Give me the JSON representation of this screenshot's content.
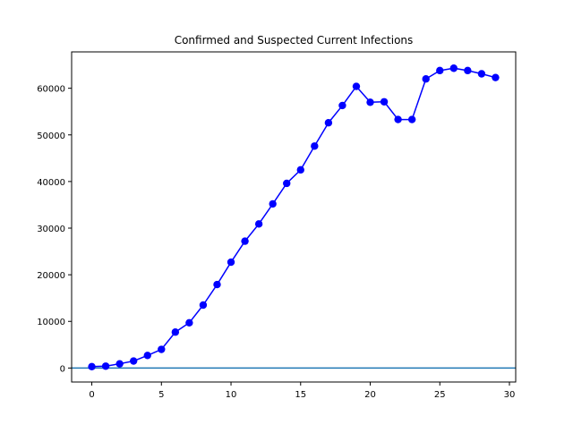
{
  "chart_data": {
    "type": "line",
    "title": "Confirmed and Suspected Current Infections",
    "xlabel": "",
    "ylabel": "",
    "xlim": [
      -1.45,
      30.45
    ],
    "ylim": [
      -3000,
      67800
    ],
    "x_ticks": [
      0,
      5,
      10,
      15,
      20,
      25,
      30
    ],
    "y_ticks": [
      0,
      10000,
      20000,
      30000,
      40000,
      50000,
      60000
    ],
    "grid": false,
    "legend": "none",
    "series": [
      {
        "color": "#0000ff",
        "marker": "circle",
        "x": [
          0,
          1,
          2,
          3,
          4,
          5,
          6,
          7,
          8,
          9,
          10,
          11,
          12,
          13,
          14,
          15,
          16,
          17,
          18,
          19,
          20,
          21,
          22,
          23,
          24,
          25,
          26,
          27,
          28,
          29
        ],
        "y": [
          300,
          400,
          900,
          1500,
          2700,
          4000,
          7700,
          9700,
          13500,
          17900,
          22700,
          27200,
          30900,
          35200,
          39600,
          42500,
          47600,
          52600,
          56300,
          60400,
          57000,
          57100,
          53300,
          53300,
          62000,
          63800,
          64300,
          63800,
          63100,
          62300
        ]
      }
    ],
    "reference_lines": [
      {
        "orientation": "horizontal",
        "y": 0,
        "color": "#1f77b4"
      }
    ],
    "axis_color": "#000000"
  }
}
